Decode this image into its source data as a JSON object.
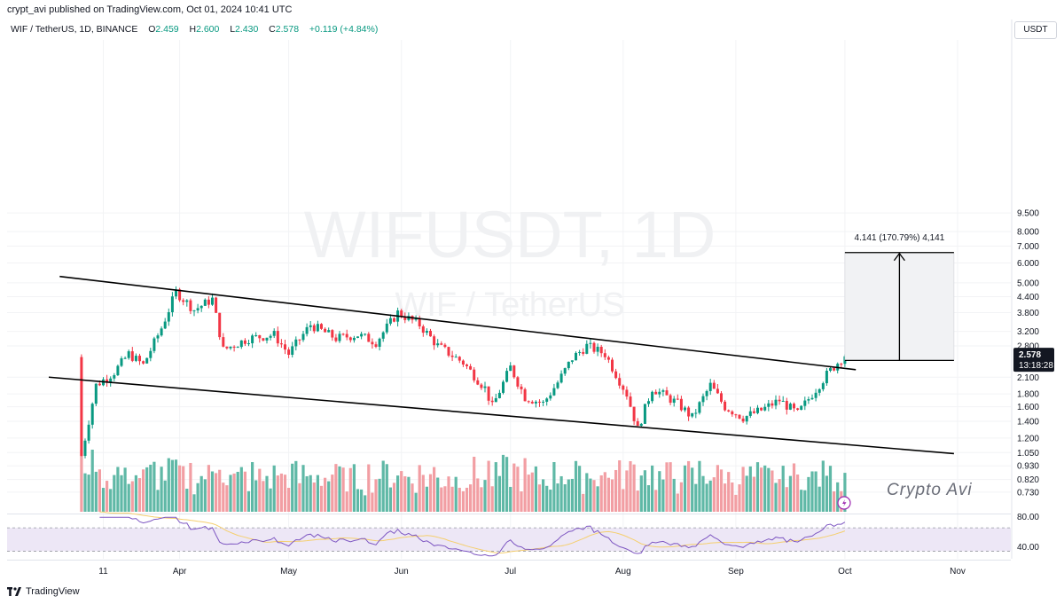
{
  "header": {
    "published_text": "crypt_avi published on TradingView.com, Oct 01, 2024 10:41 UTC"
  },
  "legend": {
    "symbol_text": "WIF / TetherUS, 1D, BINANCE",
    "open_label": "O",
    "open_value": "2.459",
    "high_label": "H",
    "high_value": "2.600",
    "low_label": "L",
    "low_value": "2.430",
    "close_label": "C",
    "close_value": "2.578",
    "change_text": "+0.119 (+4.84%)"
  },
  "currency_button": "USDT",
  "watermark": {
    "ticker": "WIFUSDT, 1D",
    "name": "WIF / TetherUS"
  },
  "signature": "Crypto Avi",
  "footer_brand": "TradingView",
  "colors": {
    "up": "#089981",
    "down": "#f23645",
    "up_volume": "#5fb8a6",
    "down_volume": "#f29ea3",
    "rsi_line": "#7e57c2",
    "rsi_ma": "#f5cf6e",
    "rsi_band": "#ede7f6",
    "line": "#000000"
  },
  "chart_data": {
    "type": "candlestick",
    "timeframe": "1D",
    "scale": "log",
    "y_ticks": [
      9.5,
      8.0,
      7.0,
      6.0,
      5.0,
      4.4,
      3.8,
      3.2,
      2.8,
      2.1,
      1.8,
      1.6,
      1.4,
      1.2,
      1.05,
      0.93,
      0.82,
      0.73
    ],
    "y_tick_labels": [
      "9.500",
      "8.000",
      "7.000",
      "6.000",
      "5.000",
      "4.400",
      "3.800",
      "3.200",
      "2.800",
      "2.100",
      "1.800",
      "1.600",
      "1.400",
      "1.200",
      "1.050",
      "0.930",
      "0.820",
      "0.730"
    ],
    "x_tick_labels": [
      {
        "date": "2024-03-11",
        "label": "11"
      },
      {
        "date": "2024-04-01",
        "label": "Apr"
      },
      {
        "date": "2024-05-01",
        "label": "May"
      },
      {
        "date": "2024-06-01",
        "label": "Jun"
      },
      {
        "date": "2024-07-01",
        "label": "Jul"
      },
      {
        "date": "2024-08-01",
        "label": "Aug"
      },
      {
        "date": "2024-09-01",
        "label": "Sep"
      },
      {
        "date": "2024-10-01",
        "label": "Oct"
      },
      {
        "date": "2024-11-01",
        "label": "Nov"
      }
    ],
    "price_path": [
      {
        "date": "2024-03-05",
        "price": 1.02
      },
      {
        "date": "2024-03-09",
        "price": 1.95
      },
      {
        "date": "2024-03-14",
        "price": 2.2
      },
      {
        "date": "2024-03-18",
        "price": 2.6
      },
      {
        "date": "2024-03-22",
        "price": 2.35
      },
      {
        "date": "2024-03-27",
        "price": 3.3
      },
      {
        "date": "2024-03-31",
        "price": 4.6
      },
      {
        "date": "2024-04-05",
        "price": 3.9
      },
      {
        "date": "2024-04-10",
        "price": 4.3
      },
      {
        "date": "2024-04-13",
        "price": 2.7
      },
      {
        "date": "2024-04-20",
        "price": 3.0
      },
      {
        "date": "2024-04-27",
        "price": 3.1
      },
      {
        "date": "2024-05-01",
        "price": 2.6
      },
      {
        "date": "2024-05-07",
        "price": 3.4
      },
      {
        "date": "2024-05-14",
        "price": 3.0
      },
      {
        "date": "2024-05-20",
        "price": 3.1
      },
      {
        "date": "2024-05-25",
        "price": 2.9
      },
      {
        "date": "2024-05-31",
        "price": 3.8
      },
      {
        "date": "2024-06-06",
        "price": 3.4
      },
      {
        "date": "2024-06-11",
        "price": 2.8
      },
      {
        "date": "2024-06-18",
        "price": 2.4
      },
      {
        "date": "2024-06-24",
        "price": 1.9
      },
      {
        "date": "2024-06-26",
        "price": 1.6
      },
      {
        "date": "2024-07-01",
        "price": 2.3
      },
      {
        "date": "2024-07-05",
        "price": 1.75
      },
      {
        "date": "2024-07-10",
        "price": 1.65
      },
      {
        "date": "2024-07-14",
        "price": 2.0
      },
      {
        "date": "2024-07-18",
        "price": 2.5
      },
      {
        "date": "2024-07-22",
        "price": 2.8
      },
      {
        "date": "2024-07-27",
        "price": 2.6
      },
      {
        "date": "2024-08-02",
        "price": 1.8
      },
      {
        "date": "2024-08-05",
        "price": 1.3
      },
      {
        "date": "2024-08-09",
        "price": 1.9
      },
      {
        "date": "2024-08-16",
        "price": 1.65
      },
      {
        "date": "2024-08-20",
        "price": 1.45
      },
      {
        "date": "2024-08-25",
        "price": 1.95
      },
      {
        "date": "2024-08-29",
        "price": 1.6
      },
      {
        "date": "2024-09-03",
        "price": 1.45
      },
      {
        "date": "2024-09-08",
        "price": 1.55
      },
      {
        "date": "2024-09-13",
        "price": 1.7
      },
      {
        "date": "2024-09-18",
        "price": 1.5
      },
      {
        "date": "2024-09-22",
        "price": 1.8
      },
      {
        "date": "2024-09-26",
        "price": 2.15
      },
      {
        "date": "2024-10-01",
        "price": 2.578
      }
    ],
    "last_price_label": "2.578",
    "countdown_label": "13:18:28",
    "trendlines": [
      {
        "name": "upper",
        "from": {
          "date": "2024-02-28",
          "price": 5.3
        },
        "to": {
          "date": "2024-10-04",
          "price": 2.25
        }
      },
      {
        "name": "lower",
        "from": {
          "date": "2024-02-25",
          "price": 2.1
        },
        "to": {
          "date": "2024-10-31",
          "price": 1.04
        }
      }
    ],
    "projection": {
      "from_price": 2.45,
      "to_price": 6.6,
      "date_start": "2024-10-01",
      "date_end": "2024-10-31",
      "label": "4.141 (170.79%) 4,141"
    },
    "rsi": {
      "tick_labels": [
        "80.00",
        "40.00"
      ],
      "upper_band": 70,
      "lower_band": 30
    }
  }
}
